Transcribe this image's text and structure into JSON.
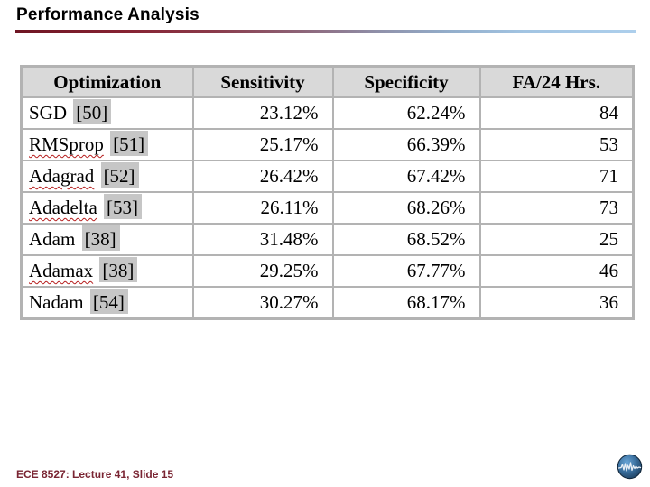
{
  "slide": {
    "title": "Performance Analysis",
    "footer": "ECE 8527: Lecture 41, Slide 15",
    "logo": "signal-globe-logo"
  },
  "colors": {
    "rule_gradient_start": "#6e1523",
    "rule_gradient_end": "#adcfec",
    "footer_text": "#7a2533",
    "table_border": "#b3b3b3",
    "header_bg": "#d9d9d9",
    "citation_highlight": "#c6c6c6",
    "squiggle_red": "#b51c1c",
    "logo_blue_light": "#5b9bd0",
    "logo_blue_dark": "#16324f"
  },
  "table": {
    "columns": [
      "Optimization",
      "Sensitivity",
      "Specificity",
      "FA/24 Hrs."
    ],
    "rows": [
      {
        "optimizer": "SGD",
        "citation": "[50]",
        "misspelled": false,
        "sensitivity": "23.12%",
        "specificity": "62.24%",
        "fa24": "84"
      },
      {
        "optimizer": "RMSprop",
        "citation": "[51]",
        "misspelled": true,
        "sensitivity": "25.17%",
        "specificity": "66.39%",
        "fa24": "53"
      },
      {
        "optimizer": "Adagrad",
        "citation": "[52]",
        "misspelled": true,
        "sensitivity": "26.42%",
        "specificity": "67.42%",
        "fa24": "71"
      },
      {
        "optimizer": "Adadelta",
        "citation": "[53]",
        "misspelled": true,
        "sensitivity": "26.11%",
        "specificity": "68.26%",
        "fa24": "73"
      },
      {
        "optimizer": "Adam",
        "citation": "[38]",
        "misspelled": false,
        "sensitivity": "31.48%",
        "specificity": "68.52%",
        "fa24": "25"
      },
      {
        "optimizer": "Adamax",
        "citation": "[38]",
        "misspelled": true,
        "sensitivity": "29.25%",
        "specificity": "67.77%",
        "fa24": "46"
      },
      {
        "optimizer": "Nadam",
        "citation": "[54]",
        "misspelled": false,
        "sensitivity": "30.27%",
        "specificity": "68.17%",
        "fa24": "36"
      }
    ]
  },
  "chart_data": {
    "type": "table",
    "title": "Performance Analysis",
    "columns": [
      "Optimization",
      "Sensitivity",
      "Specificity",
      "FA/24 Hrs."
    ],
    "rows": [
      [
        "SGD [50]",
        "23.12%",
        "62.24%",
        84
      ],
      [
        "RMSprop [51]",
        "25.17%",
        "66.39%",
        53
      ],
      [
        "Adagrad [52]",
        "26.42%",
        "67.42%",
        71
      ],
      [
        "Adadelta [53]",
        "26.11%",
        "68.26%",
        73
      ],
      [
        "Adam [38]",
        "31.48%",
        "68.52%",
        25
      ],
      [
        "Adamax [38]",
        "29.25%",
        "67.77%",
        46
      ],
      [
        "Nadam [54]",
        "30.27%",
        "68.17%",
        36
      ]
    ]
  }
}
